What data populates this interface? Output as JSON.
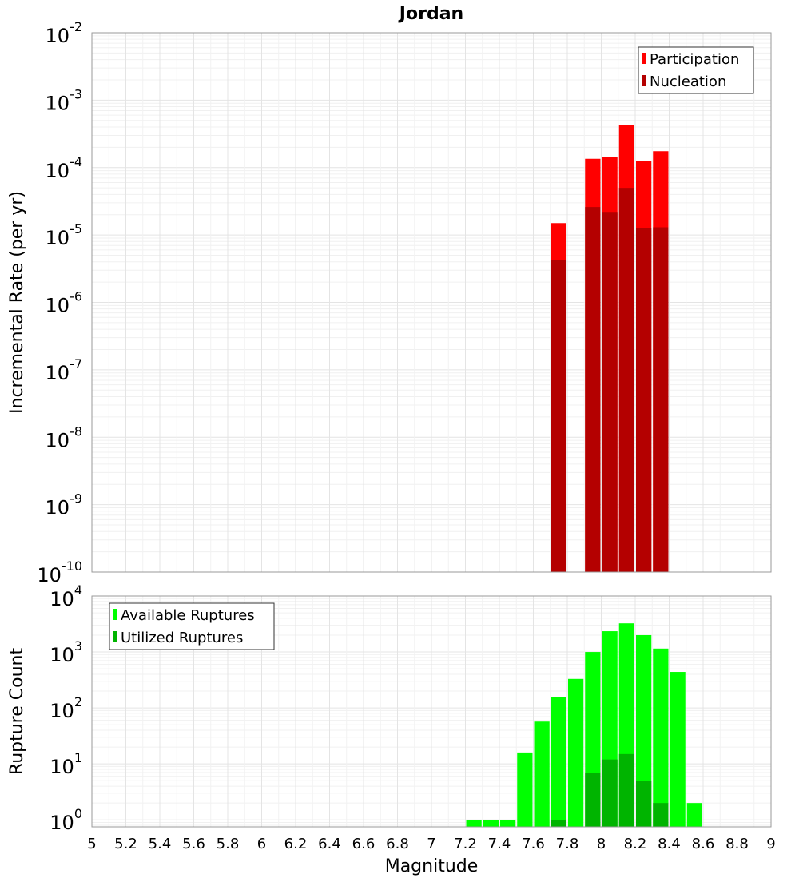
{
  "chart_data": [
    {
      "type": "bar",
      "title": "Jordan",
      "ylabel": "Incremental Rate (per yr)",
      "yscale": "log",
      "ylim": [
        1e-10,
        0.01
      ],
      "ytick_exponents": [
        -10,
        -9,
        -8,
        -7,
        -6,
        -5,
        -4,
        -3,
        -2
      ],
      "legend": {
        "placement": "top-right",
        "entries": [
          "Participation",
          "Nucleation"
        ]
      },
      "x": [
        7.75,
        7.95,
        8.05,
        8.15,
        8.25,
        8.35
      ],
      "series": [
        {
          "name": "Participation",
          "color": "#ff0000",
          "values": [
            1.5e-05,
            0.000135,
            0.000145,
            0.00043,
            0.000125,
            0.000175
          ]
        },
        {
          "name": "Nucleation",
          "color": "#b40000",
          "values": [
            4.3e-06,
            2.6e-05,
            2.2e-05,
            5e-05,
            1.25e-05,
            1.3e-05
          ]
        }
      ]
    },
    {
      "type": "bar",
      "xlabel": "Magnitude",
      "ylabel": "Rupture Count",
      "yscale": "log",
      "ylim": [
        0.75,
        10000
      ],
      "ytick_exponents": [
        0,
        1,
        2,
        3,
        4
      ],
      "xlim": [
        5,
        9
      ],
      "xticks": [
        "5",
        "5.2",
        "5.4",
        "5.6",
        "5.8",
        "6",
        "6.2",
        "6.4",
        "6.6",
        "6.8",
        "7",
        "7.2",
        "7.4",
        "7.6",
        "7.8",
        "8",
        "8.2",
        "8.4",
        "8.6",
        "8.8",
        "9"
      ],
      "legend": {
        "placement": "top-left",
        "entries": [
          "Available Ruptures",
          "Utilized Ruptures"
        ]
      },
      "x": [
        7.25,
        7.35,
        7.45,
        7.55,
        7.65,
        7.75,
        7.85,
        7.95,
        8.05,
        8.15,
        8.25,
        8.35,
        8.45,
        8.55
      ],
      "series": [
        {
          "name": "Available Ruptures",
          "color": "#00ff00",
          "values": [
            1,
            1,
            1,
            16,
            57,
            157,
            330,
            1000,
            2350,
            3250,
            2000,
            1150,
            440,
            2
          ]
        },
        {
          "name": "Utilized Ruptures",
          "color": "#00b400",
          "values": [
            0,
            0,
            0,
            0,
            0,
            1,
            0,
            7,
            12,
            15,
            5,
            2,
            0,
            0
          ]
        }
      ]
    }
  ]
}
